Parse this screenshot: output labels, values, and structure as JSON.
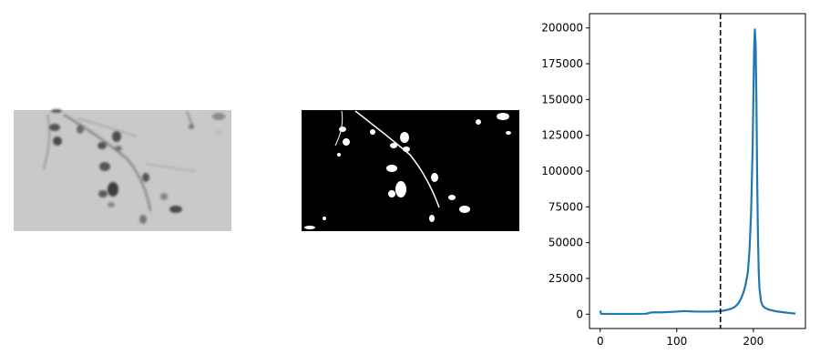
{
  "panels": [
    {
      "kind": "image",
      "description_hidden": true,
      "style": "grayscale"
    },
    {
      "kind": "image",
      "description_hidden": true,
      "style": "binary-threshold"
    }
  ],
  "chart_data": {
    "type": "line",
    "title": "",
    "xlabel": "",
    "ylabel": "",
    "xlim": [
      -14,
      268
    ],
    "ylim": [
      -10000,
      210000
    ],
    "xticks": [
      0,
      100,
      200
    ],
    "xtick_labels": [
      "0",
      "100",
      "200"
    ],
    "yticks": [
      0,
      25000,
      50000,
      75000,
      100000,
      125000,
      150000,
      175000,
      200000
    ],
    "ytick_labels": [
      "0",
      "25000",
      "50000",
      "75000",
      "100000",
      "125000",
      "150000",
      "175000",
      "200000"
    ],
    "grid": false,
    "legend": "none",
    "threshold_line": {
      "x": 157,
      "style": "dashed",
      "color": "#000000"
    },
    "series": [
      {
        "color": "#1f77b4",
        "x": [
          0,
          1,
          3,
          5,
          10,
          20,
          40,
          60,
          66,
          70,
          80,
          90,
          100,
          110,
          120,
          130,
          140,
          150,
          155,
          160,
          165,
          170,
          175,
          178,
          181,
          184,
          187,
          190,
          193,
          195,
          197,
          199,
          200,
          201,
          202,
          203,
          204,
          205,
          206,
          207,
          208,
          210,
          212,
          215,
          220,
          230,
          240,
          250,
          255
        ],
        "y": [
          2500,
          300,
          200,
          200,
          200,
          200,
          200,
          300,
          1200,
          1300,
          1300,
          1500,
          1800,
          2200,
          1900,
          1800,
          1800,
          1900,
          2100,
          2400,
          2900,
          3600,
          4800,
          6200,
          8000,
          11000,
          15000,
          21000,
          30000,
          45000,
          70000,
          115000,
          150000,
          185000,
          199000,
          188000,
          150000,
          95000,
          55000,
          30000,
          18000,
          9000,
          6000,
          4500,
          3200,
          2000,
          1300,
          700,
          400
        ]
      }
    ]
  }
}
